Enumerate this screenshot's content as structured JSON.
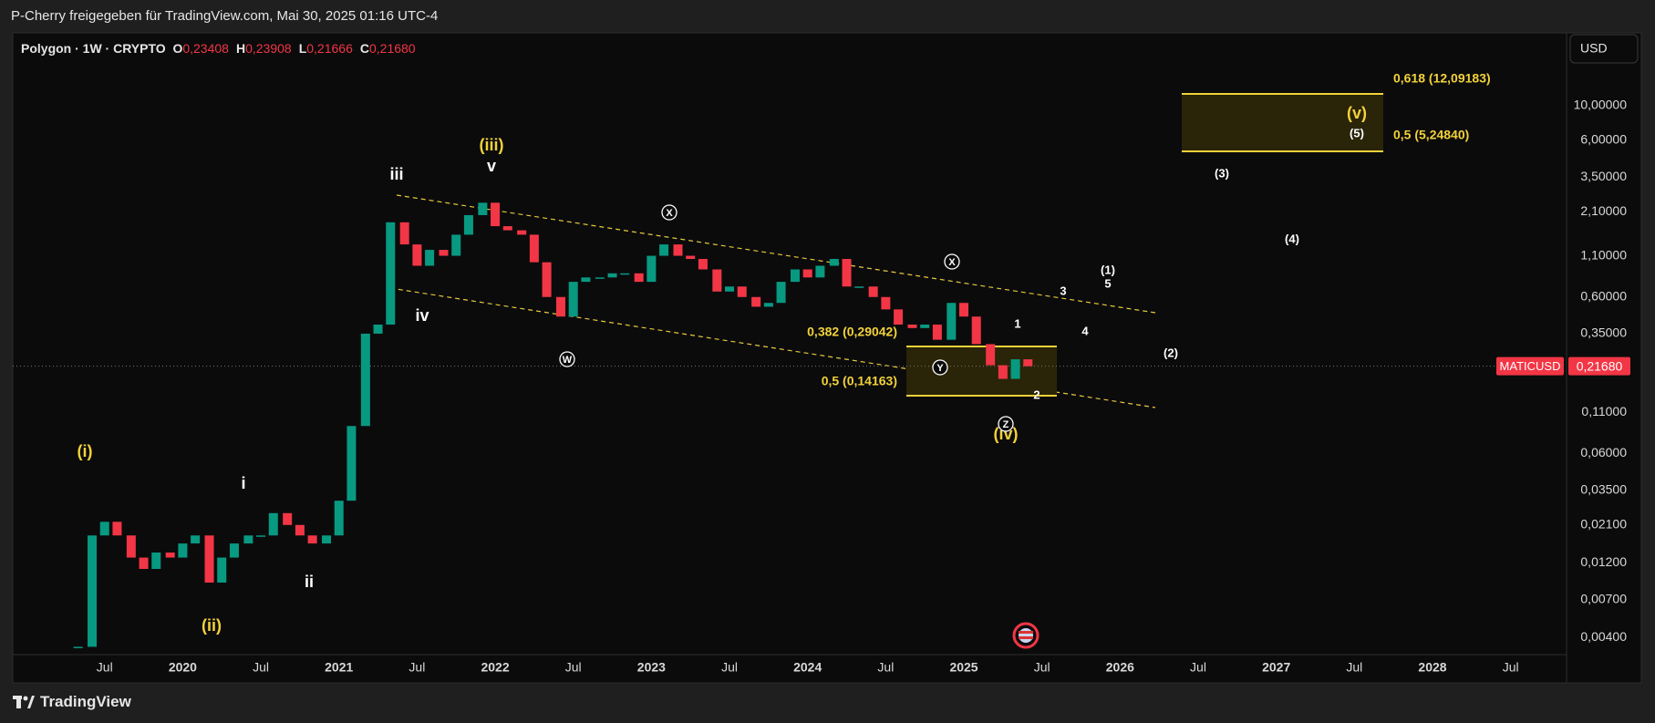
{
  "header": {
    "shared_by": "P-Cherry freigegeben für TradingView.com, Mai 30, 2025 01:16 UTC-4"
  },
  "chart_data": {
    "type": "candlestick",
    "title": "Polygon · 1W · CRYPTO",
    "ohlc": [
      [
        "O",
        "0,23408"
      ],
      [
        "H",
        "0,23908"
      ],
      [
        "L",
        "0,21666"
      ],
      [
        "C",
        "0,21680"
      ]
    ],
    "x": [
      2019.33,
      2019.42,
      2019.5,
      2019.58,
      2019.67,
      2019.75,
      2019.83,
      2019.92,
      2020.0,
      2020.08,
      2020.17,
      2020.25,
      2020.33,
      2020.42,
      2020.5,
      2020.58,
      2020.67,
      2020.75,
      2020.83,
      2020.92,
      2021.0,
      2021.08,
      2021.17,
      2021.25,
      2021.33,
      2021.42,
      2021.5,
      2021.58,
      2021.67,
      2021.75,
      2021.83,
      2021.92,
      2022.0,
      2022.08,
      2022.17,
      2022.25,
      2022.33,
      2022.42,
      2022.5,
      2022.58,
      2022.67,
      2022.75,
      2022.83,
      2022.92,
      2023.0,
      2023.08,
      2023.17,
      2023.25,
      2023.33,
      2023.42,
      2023.5,
      2023.58,
      2023.67,
      2023.75,
      2023.83,
      2023.92,
      2024.0,
      2024.08,
      2024.17,
      2024.25,
      2024.33,
      2024.42,
      2024.5,
      2024.58,
      2024.67,
      2024.75,
      2024.83,
      2024.92,
      2025.0,
      2025.08,
      2025.17,
      2025.25,
      2025.33,
      2025.41
    ],
    "values": [
      0.0035,
      0.018,
      0.022,
      0.018,
      0.013,
      0.011,
      0.014,
      0.013,
      0.016,
      0.018,
      0.009,
      0.013,
      0.016,
      0.018,
      0.018,
      0.025,
      0.021,
      0.018,
      0.016,
      0.018,
      0.03,
      0.09,
      0.35,
      0.4,
      1.8,
      1.3,
      0.95,
      1.2,
      1.1,
      1.5,
      2.0,
      2.4,
      1.7,
      1.6,
      1.5,
      1.0,
      0.6,
      0.45,
      0.75,
      0.8,
      0.8,
      0.85,
      0.85,
      0.75,
      1.1,
      1.3,
      1.1,
      1.05,
      0.9,
      0.65,
      0.7,
      0.6,
      0.52,
      0.55,
      0.75,
      0.9,
      0.8,
      0.95,
      1.05,
      0.7,
      0.7,
      0.6,
      0.5,
      0.4,
      0.38,
      0.4,
      0.32,
      0.55,
      0.45,
      0.3,
      0.22,
      0.18,
      0.24,
      0.2168
    ],
    "colors": {
      "up": "#089981",
      "down": "#f23645"
    },
    "log_scale": true,
    "xlim": [
      2018.912,
      2028.858
    ],
    "xticks": [
      {
        "value": 2019.5,
        "label": "Jul"
      },
      2020,
      {
        "value": 2020.5,
        "label": "Jul"
      },
      2021,
      {
        "value": 2021.5,
        "label": "Jul"
      },
      2022,
      {
        "value": 2022.5,
        "label": "Jul"
      },
      2023,
      {
        "value": 2023.5,
        "label": "Jul"
      },
      2024,
      {
        "value": 2024.5,
        "label": "Jul"
      },
      2025,
      {
        "value": 2025.5,
        "label": "Jul"
      },
      2026,
      {
        "value": 2026.5,
        "label": "Jul"
      },
      2027,
      {
        "value": 2027.5,
        "label": "Jul"
      },
      2028,
      {
        "value": 2028.5,
        "label": "Jul"
      }
    ],
    "ylim": [
      0.00312,
      29.2
    ],
    "yticks": [
      {
        "value": 10,
        "label": "10,00000"
      },
      {
        "value": 6,
        "label": "6,00000"
      },
      {
        "value": 3.5,
        "label": "3,50000"
      },
      {
        "value": 2.1,
        "label": "2,10000"
      },
      {
        "value": 1.1,
        "label": "1,10000"
      },
      {
        "value": 0.6,
        "label": "0,60000"
      },
      {
        "value": 0.35,
        "label": "0,35000"
      },
      {
        "value": 0.11,
        "label": "0,11000"
      },
      {
        "value": 0.06,
        "label": "0,06000"
      },
      {
        "value": 0.035,
        "label": "0,03500"
      },
      {
        "value": 0.021,
        "label": "0,02100"
      },
      {
        "value": 0.012,
        "label": "0,01200"
      },
      {
        "value": 0.007,
        "label": "0,00700"
      },
      {
        "value": 0.004,
        "label": "0,00400"
      }
    ],
    "symbol": "MATICUSD",
    "last_price": {
      "value": 0.2168,
      "label": "0,21680"
    },
    "currency": "USD",
    "fib_labels": [
      "0,618 (12,09183)",
      "0,5 (5,24840)",
      "0,382 (0,29042)",
      "0,5 (0,14163)"
    ],
    "annotations": [
      {
        "text": "(i)",
        "color": "#f2d23a"
      },
      {
        "text": "(ii)",
        "color": "#f2d23a"
      },
      {
        "text": "(iii)",
        "color": "#f2d23a"
      },
      {
        "text": "(iv)",
        "color": "#f2d23a"
      },
      {
        "text": "(v)",
        "color": "#f2d23a"
      },
      {
        "text": "i",
        "color": "#ffffff"
      },
      {
        "text": "ii",
        "color": "#ffffff"
      },
      {
        "text": "iii",
        "color": "#ffffff"
      },
      {
        "text": "iv",
        "color": "#ffffff"
      },
      {
        "text": "v",
        "color": "#ffffff"
      },
      {
        "text": "W",
        "color": "#ffffff"
      },
      {
        "text": "X",
        "color": "#ffffff"
      },
      {
        "text": "X",
        "color": "#ffffff"
      },
      {
        "text": "Y",
        "color": "#ffffff"
      },
      {
        "text": "Z",
        "color": "#ffffff"
      },
      {
        "text": "1",
        "color": "#ffffff"
      },
      {
        "text": "2",
        "color": "#ffffff"
      },
      {
        "text": "3",
        "color": "#ffffff"
      },
      {
        "text": "4",
        "color": "#ffffff"
      },
      {
        "text": "5",
        "color": "#ffffff"
      },
      {
        "text": "(1)",
        "color": "#ffffff"
      },
      {
        "text": "(2)",
        "color": "#ffffff"
      },
      {
        "text": "(3)",
        "color": "#ffffff"
      },
      {
        "text": "(4)",
        "color": "#ffffff"
      },
      {
        "text": "(5)",
        "color": "#ffffff"
      }
    ]
  },
  "footer": {
    "brand": "TradingView"
  }
}
